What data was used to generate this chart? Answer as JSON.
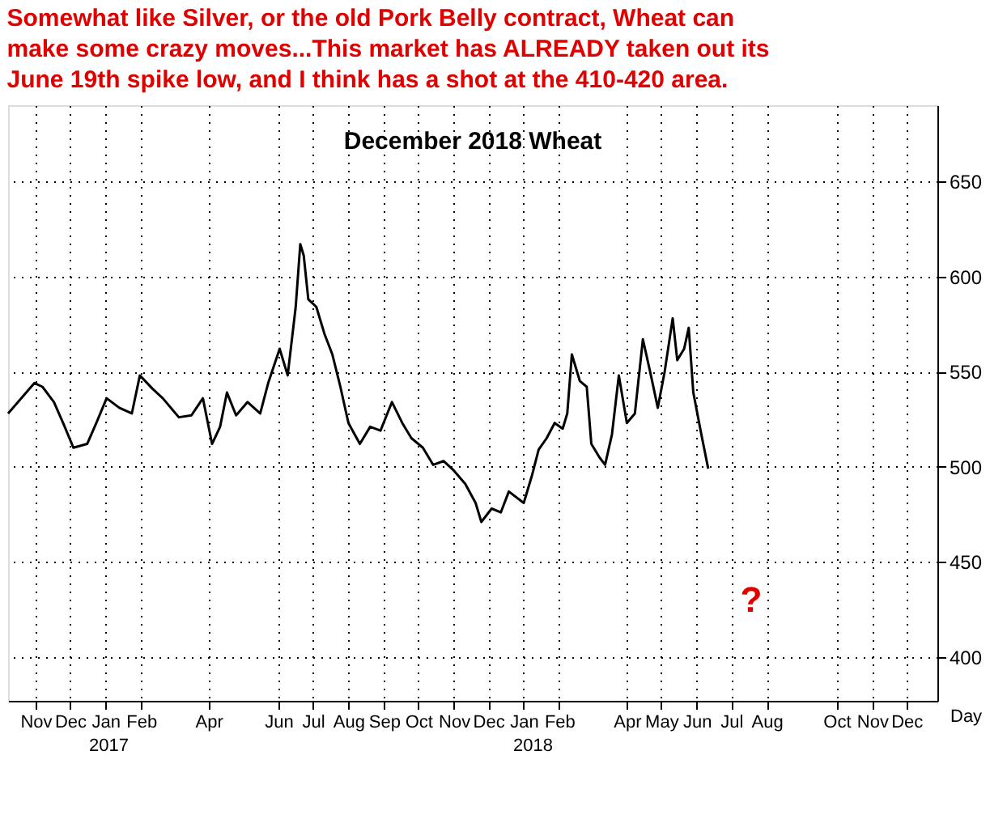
{
  "chart_data": {
    "type": "line",
    "title": "Somewhat like Silver, or the old Pork Belly contract, Wheat can\nmake some crazy moves...This market has ALREADY taken out its\nJune 19th spike low, and I think has a shot at the 410-420 area.",
    "subtitle": "December 2018 Wheat",
    "xlabel": "Day",
    "series": [
      {
        "color": "#000000",
        "x": [
          "2016-10-22",
          "2016-11-14",
          "2016-11-21",
          "2016-12-01",
          "2016-12-09",
          "2016-12-18",
          "2016-12-30",
          "2017-01-07",
          "2017-01-16",
          "2017-01-27",
          "2017-02-07",
          "2017-02-14",
          "2017-02-25",
          "2017-03-06",
          "2017-03-20",
          "2017-03-31",
          "2017-04-10",
          "2017-04-18",
          "2017-04-25",
          "2017-05-01",
          "2017-05-09",
          "2017-05-19",
          "2017-05-30",
          "2017-06-06",
          "2017-06-16",
          "2017-06-23",
          "2017-06-30",
          "2017-07-04",
          "2017-07-07",
          "2017-07-11",
          "2017-07-18",
          "2017-07-25",
          "2017-08-01",
          "2017-08-08",
          "2017-08-15",
          "2017-08-25",
          "2017-09-03",
          "2017-09-12",
          "2017-09-22",
          "2017-10-01",
          "2017-10-09",
          "2017-10-19",
          "2017-10-28",
          "2017-11-06",
          "2017-11-15",
          "2017-11-25",
          "2017-12-04",
          "2017-12-09",
          "2017-12-18",
          "2017-12-26",
          "2018-01-02",
          "2018-01-15",
          "2018-01-22",
          "2018-01-28",
          "2018-02-04",
          "2018-02-11",
          "2018-02-18",
          "2018-02-22",
          "2018-02-26",
          "2018-03-05",
          "2018-03-11",
          "2018-03-15",
          "2018-03-22",
          "2018-03-27",
          "2018-04-02",
          "2018-04-08",
          "2018-04-15",
          "2018-04-22",
          "2018-04-29",
          "2018-05-06",
          "2018-05-12",
          "2018-05-18",
          "2018-05-25",
          "2018-05-29",
          "2018-06-04",
          "2018-06-08",
          "2018-06-12",
          "2018-06-19",
          "2018-06-25"
        ],
        "values": [
          528,
          544,
          542,
          534,
          523,
          510,
          512,
          523,
          536,
          531,
          528,
          548,
          541,
          536,
          526,
          527,
          536,
          512,
          521,
          539,
          527,
          534,
          528,
          544,
          562,
          548,
          584,
          617,
          611,
          588,
          584,
          570,
          559,
          542,
          523,
          512,
          521,
          519,
          534,
          523,
          515,
          510,
          501,
          503,
          498,
          491,
          481,
          471,
          478,
          476,
          487,
          481,
          495,
          509,
          515,
          523,
          520,
          528,
          559,
          545,
          542,
          512,
          505,
          501,
          517,
          548,
          523,
          528,
          567,
          548,
          531,
          550,
          578,
          556,
          562,
          573,
          539,
          517,
          499
        ]
      }
    ],
    "xlim": [
      "2016-10-22",
      "2019-01-11"
    ],
    "xticks": [
      {
        "value": "2016-11-15",
        "label": "Nov"
      },
      {
        "value": "2016-12-15",
        "label": "Dec"
      },
      {
        "value": "2017-01-15",
        "label": "Jan"
      },
      {
        "value": "2017-02-15",
        "label": "Feb"
      },
      {
        "value": "2017-04-15",
        "label": "Apr"
      },
      {
        "value": "2017-06-15",
        "label": "Jun"
      },
      {
        "value": "2017-07-15",
        "label": "Jul"
      },
      {
        "value": "2017-08-15",
        "label": "Aug"
      },
      {
        "value": "2017-09-15",
        "label": "Sep"
      },
      {
        "value": "2017-10-15",
        "label": "Oct"
      },
      {
        "value": "2017-11-15",
        "label": "Nov"
      },
      {
        "value": "2017-12-15",
        "label": "Dec"
      },
      {
        "value": "2018-01-15",
        "label": "Jan"
      },
      {
        "value": "2018-02-15",
        "label": "Feb"
      },
      {
        "value": "2018-04-15",
        "label": "Apr"
      },
      {
        "value": "2018-05-15",
        "label": "May"
      },
      {
        "value": "2018-06-15",
        "label": "Jun"
      },
      {
        "value": "2018-07-15",
        "label": "Jul"
      },
      {
        "value": "2018-08-15",
        "label": "Aug"
      },
      {
        "value": "2018-10-15",
        "label": "Oct"
      },
      {
        "value": "2018-11-15",
        "label": "Nov"
      },
      {
        "value": "2018-12-15",
        "label": "Dec"
      }
    ],
    "ylim": [
      377,
      690
    ],
    "yticks": [
      400,
      450,
      500,
      550,
      600,
      650
    ],
    "grid": true,
    "marker": "none",
    "line_style": "solid",
    "annotations": [
      "?",
      "2017",
      "2018"
    ]
  }
}
